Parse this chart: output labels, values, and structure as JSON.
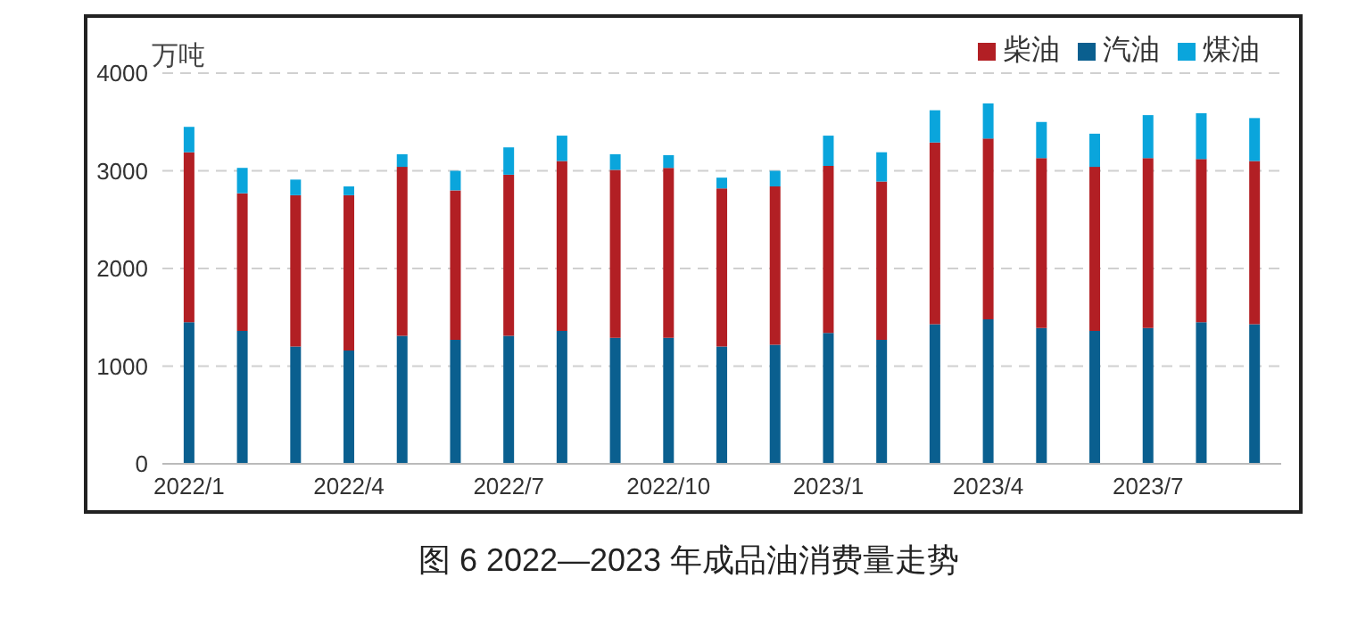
{
  "chart_data": {
    "type": "bar",
    "stacked": true,
    "title": "图 6 2022—2023 年成品油消费量走势",
    "ylabel": "万吨",
    "categories": [
      "2022/1",
      null,
      null,
      "2022/4",
      null,
      null,
      "2022/7",
      null,
      null,
      "2022/10",
      null,
      null,
      "2023/1",
      null,
      null,
      "2023/4",
      null,
      null,
      "2023/7",
      null,
      null
    ],
    "series": [
      {
        "name": "汽油",
        "color": "#0a5f8f",
        "values": [
          1450,
          1360,
          1200,
          1160,
          1310,
          1270,
          1310,
          1360,
          1290,
          1290,
          1200,
          1220,
          1340,
          1270,
          1430,
          1480,
          1390,
          1360,
          1390,
          1450,
          1430
        ]
      },
      {
        "name": "柴油",
        "color": "#b21f24",
        "values": [
          1740,
          1410,
          1550,
          1590,
          1730,
          1530,
          1650,
          1740,
          1720,
          1740,
          1620,
          1620,
          1710,
          1620,
          1860,
          1850,
          1740,
          1680,
          1740,
          1670,
          1670
        ]
      },
      {
        "name": "煤油",
        "color": "#0aa5dc",
        "values": [
          260,
          260,
          160,
          90,
          130,
          200,
          280,
          260,
          160,
          130,
          110,
          160,
          310,
          300,
          330,
          360,
          370,
          340,
          440,
          470,
          440
        ]
      }
    ],
    "ylim": [
      0,
      4000
    ],
    "yticks": [
      0,
      1000,
      2000,
      3000,
      4000
    ],
    "grid": "y",
    "legend": "top right"
  }
}
